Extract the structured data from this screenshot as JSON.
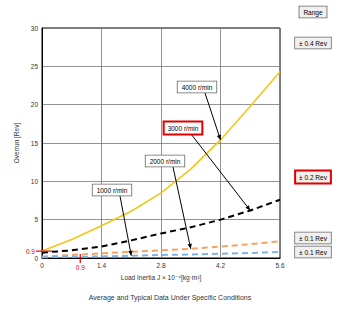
{
  "chart_data": {
    "type": "line",
    "x_label": "Load Inertia J × 10⁻⁴[kg·m²]",
    "y_label": "Overrun [Rev]",
    "caption": "Average and Typical Data Under Specific Conditions",
    "xlim": [
      0,
      5.6
    ],
    "xticks": [
      0,
      1.4,
      2.8,
      4.2,
      5.6
    ],
    "ylim": [
      0,
      30
    ],
    "yticks": [
      0,
      5,
      10,
      15,
      20,
      25,
      30
    ],
    "grid": true,
    "x": [
      0,
      0.7,
      1.4,
      2.1,
      2.8,
      3.5,
      4.2,
      4.9,
      5.6
    ],
    "series": [
      {
        "name": "4000 r/min",
        "color": "#f5c518",
        "line_style": "solid",
        "values": [
          0.9,
          2.4,
          4.2,
          6.1,
          8.5,
          11.6,
          15.4,
          19.8,
          24.3
        ]
      },
      {
        "name": "3000 r/min",
        "color": "#000000",
        "line_style": "dashed",
        "highlight": true,
        "values": [
          0.7,
          1.0,
          1.5,
          2.3,
          3.2,
          4.0,
          5.0,
          6.2,
          7.6
        ]
      },
      {
        "name": "2000 r/min",
        "color": "#f4a460",
        "line_style": "dashed",
        "values": [
          0.2,
          0.4,
          0.6,
          0.8,
          1.0,
          1.2,
          1.5,
          1.8,
          2.2
        ]
      },
      {
        "name": "1000 r/min",
        "color": "#7fb2e5",
        "line_style": "dashed",
        "values": [
          0.1,
          0.15,
          0.2,
          0.3,
          0.4,
          0.45,
          0.55,
          0.65,
          0.8
        ]
      }
    ],
    "range_title": "Range",
    "range_labels": [
      {
        "text": "± 0.4 Rev",
        "series": "4000 r/min"
      },
      {
        "text": "± 0.2 Rev",
        "series": "3000 r/min",
        "highlight": true
      },
      {
        "text": "± 0.1 Rev",
        "series": "2000 r/min"
      },
      {
        "text": "± 0.1 Rev",
        "series": "1000 r/min"
      }
    ],
    "ref_marks": [
      {
        "axis": "y",
        "value": 0.9,
        "text": "0.9",
        "color": "#e00000"
      },
      {
        "axis": "x",
        "value": 0.9,
        "text": "0.9",
        "color": "#e00000"
      }
    ]
  }
}
